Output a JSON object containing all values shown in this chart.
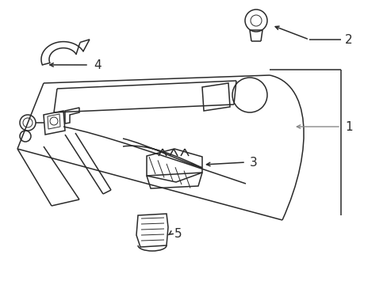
{
  "bg_color": "#ffffff",
  "line_color": "#2a2a2a",
  "gray_color": "#888888",
  "lw": 1.1,
  "lw_thin": 0.7,
  "font_size": 11,
  "xlim": [
    0,
    489
  ],
  "ylim": [
    0,
    360
  ]
}
